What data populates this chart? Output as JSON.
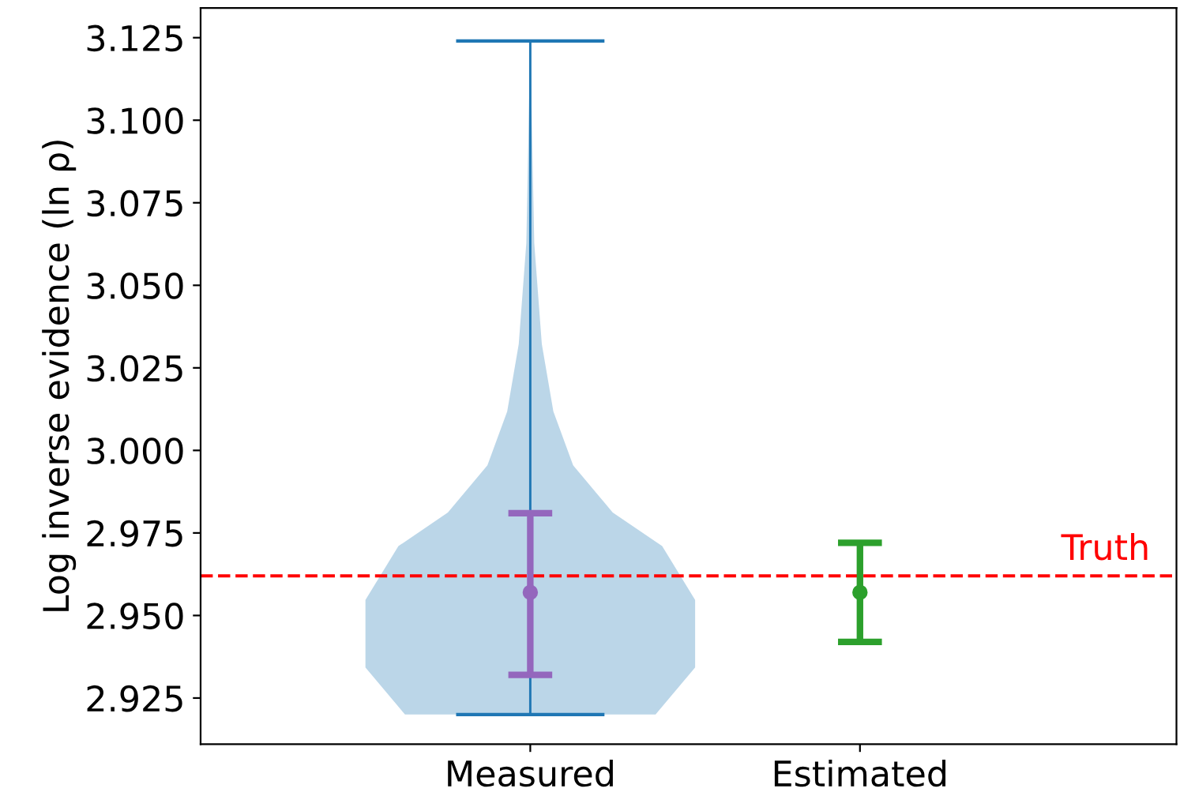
{
  "chart_data": {
    "type": "scatter",
    "ylabel": "Log inverse evidence (ln ρ)",
    "categories": [
      "Measured",
      "Estimated"
    ],
    "ylim": [
      2.911,
      3.134
    ],
    "yticks": [
      {
        "value": 2.925,
        "label": "2.925"
      },
      {
        "value": 2.95,
        "label": "2.950"
      },
      {
        "value": 2.975,
        "label": "2.975"
      },
      {
        "value": 3.0,
        "label": "3.000"
      },
      {
        "value": 3.025,
        "label": "3.025"
      },
      {
        "value": 3.05,
        "label": "3.050"
      },
      {
        "value": 3.075,
        "label": "3.075"
      },
      {
        "value": 3.1,
        "label": "3.100"
      },
      {
        "value": 3.125,
        "label": "3.125"
      }
    ],
    "series": [
      {
        "type": "bar",
        "color": "#1f77b4",
        "base": [
          2.92,
          null
        ],
        "values": [
          0.204,
          null
        ]
      },
      {
        "color": "#9467bd",
        "marker": "circle",
        "values": [
          2.957,
          null
        ],
        "errors": [
          [
            2.932,
            2.981
          ],
          null
        ]
      },
      {
        "color": "#2ca02c",
        "marker": "circle",
        "values": [
          null,
          2.957
        ],
        "errors": [
          null,
          [
            2.942,
            2.972
          ]
        ]
      }
    ],
    "ref_lines": [
      {
        "axis": "y",
        "value": 2.962,
        "label": "Truth",
        "color": "#ff0000",
        "line_style": "dashed"
      }
    ],
    "grid": false,
    "legend": false
  }
}
